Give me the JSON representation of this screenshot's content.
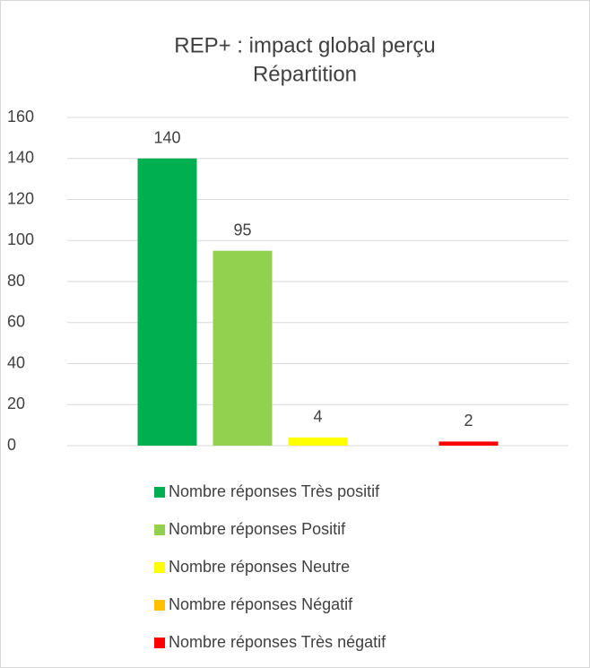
{
  "chart_data": {
    "type": "bar",
    "title": [
      "REP+ : impact global perçu",
      "Répartition"
    ],
    "series": [
      {
        "name": "Nombre réponses Très positif",
        "color": "#00b050",
        "values": [
          140
        ]
      },
      {
        "name": "Nombre réponses Positif",
        "color": "#92d050",
        "values": [
          95
        ]
      },
      {
        "name": "Nombre réponses Neutre",
        "color": "#ffff00",
        "values": [
          4
        ]
      },
      {
        "name": "Nombre réponses Négatif",
        "color": "#ffc000",
        "values": [
          null
        ]
      },
      {
        "name": "Nombre réponses Très négatif",
        "color": "#ff0000",
        "values": [
          2
        ]
      }
    ],
    "ylim": [
      0,
      160
    ],
    "yticks": [
      0,
      20,
      40,
      60,
      80,
      100,
      120,
      140,
      160
    ],
    "grid": true,
    "legend": "bottom"
  }
}
